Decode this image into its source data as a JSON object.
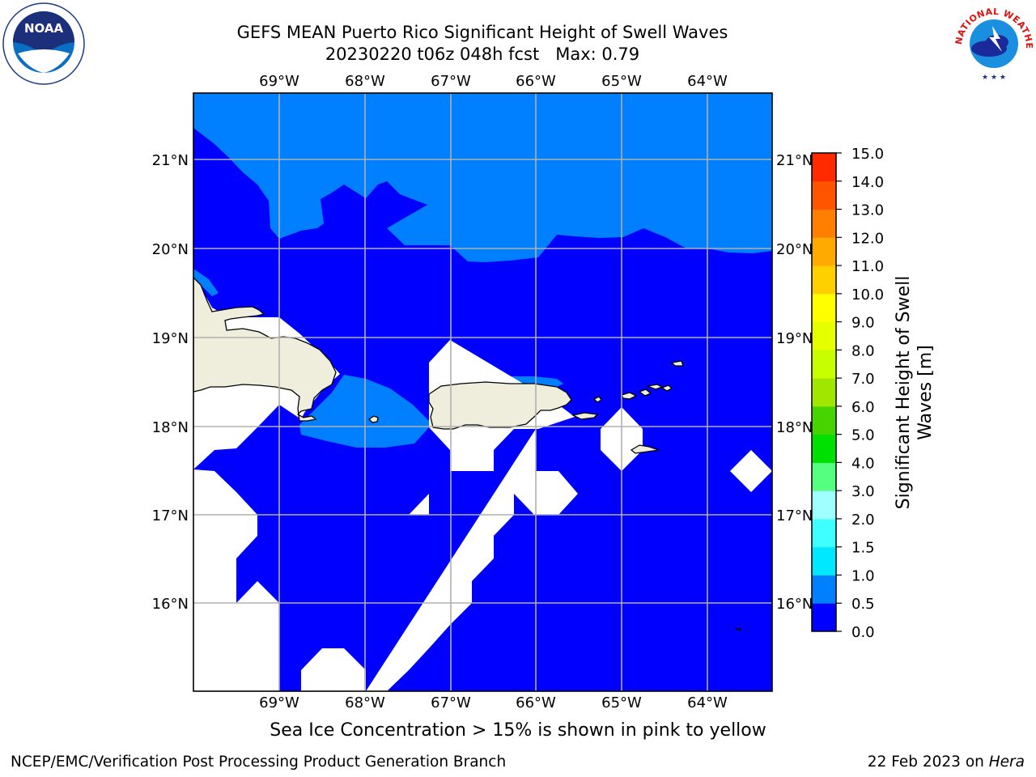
{
  "title": {
    "line1": "GEFS MEAN Puerto Rico Significant Height of Swell Waves",
    "line2": "20230220 t06z 048h fcst   Max: 0.79"
  },
  "map": {
    "lon_labels": [
      "69°W",
      "68°W",
      "67°W",
      "66°W",
      "65°W",
      "64°W"
    ],
    "lat_labels": [
      "21°N",
      "20°N",
      "19°N",
      "18°N",
      "17°N",
      "16°N"
    ],
    "colors": {
      "band_0_05": "#0000ff",
      "band_05_10": "#0080ff",
      "land": "#efeedc",
      "masked": "#ffffff",
      "grid": "#b0b0b0"
    }
  },
  "colorbar": {
    "label_line1": "Significant Height of Swell",
    "label_line2": "Waves [m]",
    "ticks": [
      "0.0",
      "0.5",
      "1.0",
      "1.5",
      "2.0",
      "3.0",
      "4.0",
      "5.0",
      "6.0",
      "7.0",
      "8.0",
      "9.0",
      "10.0",
      "11.0",
      "12.0",
      "13.0",
      "14.0",
      "15.0"
    ],
    "colors": [
      "#0000ff",
      "#0080ff",
      "#00e8ff",
      "#3fffff",
      "#a0ffff",
      "#55ff80",
      "#00e000",
      "#46d300",
      "#a0e600",
      "#c8ff00",
      "#e6ff00",
      "#ffff00",
      "#ffd000",
      "#ffaa00",
      "#ff8000",
      "#ff5500",
      "#ff2a00",
      "#ff0000"
    ]
  },
  "logos": {
    "noaa": "NOAA",
    "nws_text": "NATIONAL WEATHER SERVICE"
  },
  "note": "Sea Ice Concentration > 15% is shown in pink to yellow",
  "footer": {
    "left": "NCEP/EMC/Verification Post Processing Product Generation Branch",
    "right_date": "22 Feb 2023 on ",
    "right_host": "Hera"
  }
}
